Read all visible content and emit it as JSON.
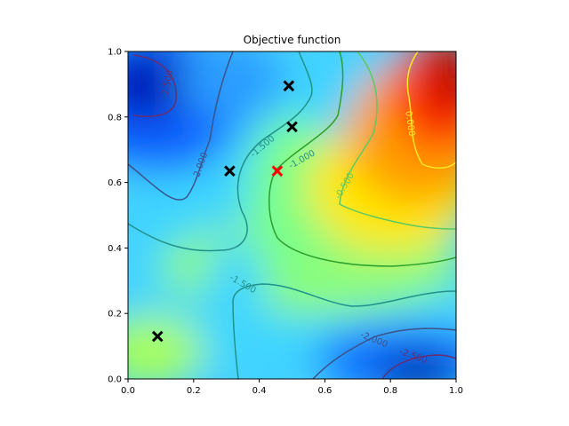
{
  "chart_data": {
    "type": "heatmap",
    "title": "Objective function",
    "xlabel": "",
    "ylabel": "",
    "xlim": [
      0.0,
      1.0
    ],
    "ylim": [
      0.0,
      1.0
    ],
    "x_ticks": [
      "0.0",
      "0.2",
      "0.4",
      "0.6",
      "0.8",
      "1.0"
    ],
    "y_ticks": [
      "0.0",
      "0.2",
      "0.4",
      "0.6",
      "0.8",
      "1.0"
    ],
    "colormap": "jet",
    "grid": false,
    "contour_levels": [
      {
        "label": "-2.500",
        "color": "#6a2c70"
      },
      {
        "label": "-2.000",
        "color": "#3b528b"
      },
      {
        "label": "-1.500",
        "color": "#21918c"
      },
      {
        "label": "-1.000",
        "color": "#2ca02c"
      },
      {
        "label": "-0.500",
        "color": "#5ec962"
      },
      {
        "label": "0.000",
        "color": "#fde725"
      }
    ],
    "contour_labels": [
      {
        "text": "-2.500",
        "x": 0.12,
        "y": 0.9,
        "rotation": -78,
        "color": "#6a2c70"
      },
      {
        "text": "-2.000",
        "x": 0.22,
        "y": 0.65,
        "rotation": -70,
        "color": "#3b528b"
      },
      {
        "text": "-1.500",
        "x": 0.41,
        "y": 0.71,
        "rotation": -40,
        "color": "#21918c"
      },
      {
        "text": "-1.000",
        "x": 0.53,
        "y": 0.67,
        "rotation": -30,
        "color": "#21918c"
      },
      {
        "text": "-0.500",
        "x": 0.66,
        "y": 0.59,
        "rotation": -60,
        "color": "#5ec962"
      },
      {
        "text": "0.000",
        "x": 0.86,
        "y": 0.78,
        "rotation": 82,
        "color": "#fde725"
      },
      {
        "text": "-1.500",
        "x": 0.35,
        "y": 0.29,
        "rotation": 30,
        "color": "#21918c"
      },
      {
        "text": "-2.000",
        "x": 0.75,
        "y": 0.12,
        "rotation": 22,
        "color": "#3b528b"
      },
      {
        "text": "-2.500",
        "x": 0.87,
        "y": 0.07,
        "rotation": 20,
        "color": "#6a2c70"
      }
    ],
    "samples": [
      {
        "x": 0.49,
        "y": 0.895,
        "color": "#000000"
      },
      {
        "x": 0.5,
        "y": 0.77,
        "color": "#000000"
      },
      {
        "x": 0.31,
        "y": 0.635,
        "color": "#000000"
      },
      {
        "x": 0.09,
        "y": 0.13,
        "color": "#000000"
      },
      {
        "x": 0.455,
        "y": 0.635,
        "color": "#ff0000"
      }
    ]
  }
}
